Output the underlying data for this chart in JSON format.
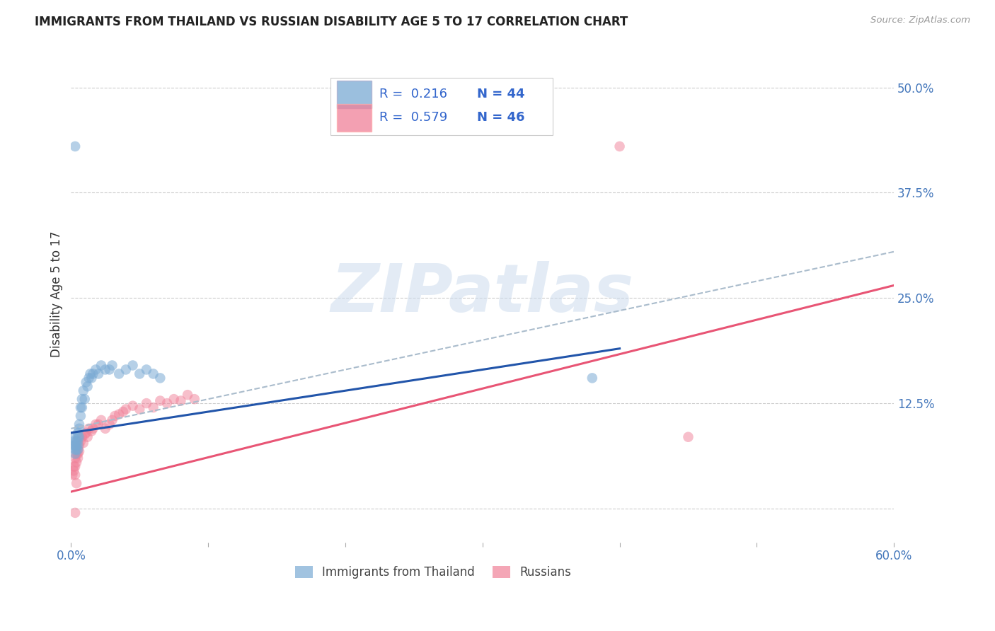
{
  "title": "IMMIGRANTS FROM THAILAND VS RUSSIAN DISABILITY AGE 5 TO 17 CORRELATION CHART",
  "source": "Source: ZipAtlas.com",
  "ylabel": "Disability Age 5 to 17",
  "xlim": [
    0.0,
    0.6
  ],
  "ylim": [
    -0.04,
    0.55
  ],
  "ytick_positions": [
    0.0,
    0.125,
    0.25,
    0.375,
    0.5
  ],
  "ytick_labels": [
    "",
    "12.5%",
    "25.0%",
    "37.5%",
    "50.0%"
  ],
  "grid_color": "#cccccc",
  "background_color": "#ffffff",
  "watermark_text": "ZIPatlas",
  "blue_color": "#7aaad4",
  "pink_color": "#f08098",
  "blue_line_color": "#2255aa",
  "pink_line_color": "#e85575",
  "dashed_line_color": "#aabccc",
  "blue_line_x": [
    0.0,
    0.4
  ],
  "blue_line_y": [
    0.09,
    0.19
  ],
  "pink_line_x": [
    0.0,
    0.6
  ],
  "pink_line_y": [
    0.02,
    0.265
  ],
  "dash_line_x": [
    0.0,
    0.6
  ],
  "dash_line_y": [
    0.095,
    0.305
  ],
  "thai_x": [
    0.003,
    0.002,
    0.002,
    0.002,
    0.003,
    0.003,
    0.004,
    0.004,
    0.004,
    0.005,
    0.005,
    0.005,
    0.005,
    0.005,
    0.006,
    0.006,
    0.006,
    0.007,
    0.007,
    0.008,
    0.008,
    0.009,
    0.01,
    0.011,
    0.012,
    0.013,
    0.014,
    0.015,
    0.016,
    0.018,
    0.02,
    0.022,
    0.025,
    0.028,
    0.03,
    0.035,
    0.04,
    0.045,
    0.05,
    0.055,
    0.06,
    0.065,
    0.38,
    0.003
  ],
  "thai_y": [
    0.43,
    0.075,
    0.08,
    0.085,
    0.07,
    0.075,
    0.08,
    0.075,
    0.07,
    0.09,
    0.085,
    0.08,
    0.075,
    0.07,
    0.1,
    0.095,
    0.085,
    0.12,
    0.11,
    0.13,
    0.12,
    0.14,
    0.13,
    0.15,
    0.145,
    0.155,
    0.16,
    0.155,
    0.16,
    0.165,
    0.16,
    0.17,
    0.165,
    0.165,
    0.17,
    0.16,
    0.165,
    0.17,
    0.16,
    0.165,
    0.16,
    0.155,
    0.155,
    0.065
  ],
  "russia_x": [
    0.001,
    0.002,
    0.002,
    0.003,
    0.003,
    0.003,
    0.004,
    0.004,
    0.005,
    0.005,
    0.005,
    0.006,
    0.006,
    0.007,
    0.008,
    0.009,
    0.01,
    0.011,
    0.012,
    0.013,
    0.015,
    0.016,
    0.018,
    0.02,
    0.022,
    0.025,
    0.028,
    0.03,
    0.032,
    0.035,
    0.038,
    0.04,
    0.045,
    0.05,
    0.055,
    0.06,
    0.065,
    0.07,
    0.075,
    0.08,
    0.085,
    0.09,
    0.4,
    0.45,
    0.003,
    0.004
  ],
  "russia_y": [
    0.04,
    0.05,
    0.045,
    0.06,
    0.05,
    0.04,
    0.065,
    0.055,
    0.07,
    0.065,
    0.06,
    0.075,
    0.068,
    0.08,
    0.085,
    0.078,
    0.088,
    0.09,
    0.085,
    0.095,
    0.092,
    0.095,
    0.1,
    0.1,
    0.105,
    0.095,
    0.1,
    0.105,
    0.11,
    0.112,
    0.115,
    0.118,
    0.122,
    0.118,
    0.125,
    0.12,
    0.128,
    0.125,
    0.13,
    0.128,
    0.135,
    0.13,
    0.43,
    0.085,
    -0.005,
    0.03
  ]
}
